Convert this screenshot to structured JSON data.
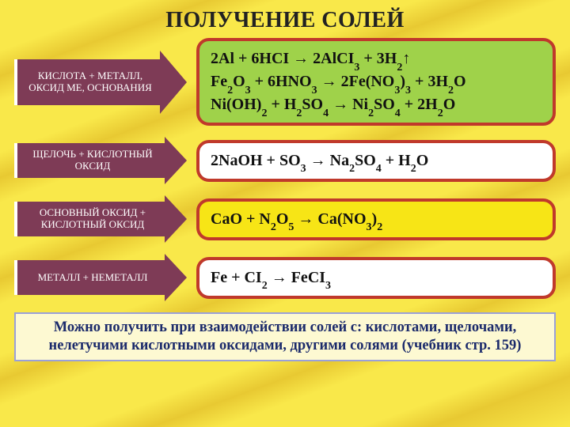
{
  "title": "ПОЛУЧЕНИЕ СОЛЕЙ",
  "title_color": "#222222",
  "title_fontsize": 28,
  "background_stripe_colors": [
    "#f9e84a",
    "#e8c932"
  ],
  "rows": [
    {
      "arrow_label": "КИСЛОТА + МЕТАЛЛ, ОКСИД МЕ, ОСНОВАНИЯ",
      "arrow_bg": "#7e3b56",
      "box_bg": "#9fd24a",
      "box_border": "#c0392b",
      "reactions_html": [
        "2Al + 6HCI → 2AlCI<sub>3</sub> + 3H<sub>2</sub>↑",
        "Fe<sub>2</sub>O<sub>3</sub> + 6HNO<sub>3</sub> → 2Fe(NO<sub>3</sub>)<sub>3</sub> + 3H<sub>2</sub>O",
        "Ni(OH)<sub>2</sub> + H<sub>2</sub>SO<sub>4</sub> → Ni<sub>2</sub>SO<sub>4</sub> + 2H<sub>2</sub>O"
      ],
      "short": false
    },
    {
      "arrow_label": "ЩЕЛОЧЬ + КИСЛОТНЫЙ ОКСИД",
      "arrow_bg": "#7e3b56",
      "box_bg": "#ffffff",
      "box_border": "#c0392b",
      "reactions_html": [
        "2NaOH + SO<sub>3</sub> → Na<sub>2</sub>SO<sub>4</sub> + H<sub>2</sub>O"
      ],
      "short": true
    },
    {
      "arrow_label": "ОСНОВНЫЙ ОКСИД + КИСЛОТНЫЙ ОКСИД",
      "arrow_bg": "#7e3b56",
      "box_bg": "#f7e516",
      "box_border": "#c0392b",
      "reactions_html": [
        "CaO + N<sub>2</sub>O<sub>5</sub> → Ca(NO<sub>3</sub>)<sub>2</sub>"
      ],
      "short": true
    },
    {
      "arrow_label": "МЕТАЛЛ + НЕМЕТАЛЛ",
      "arrow_bg": "#7e3b56",
      "box_bg": "#ffffff",
      "box_border": "#c0392b",
      "reactions_html": [
        "Fe + CI<sub>2</sub> → FeCI<sub>3</sub>"
      ],
      "short": true
    }
  ],
  "footer_text": "Можно получить при взаимодействии солей с: кислотами, щелочами, нелетучими кислотными оксидами, другими солями (учебник стр. 159)",
  "footer_bg": "#fdf9d2",
  "footer_border": "#9aa0d8",
  "footer_color": "#1b2a6b"
}
